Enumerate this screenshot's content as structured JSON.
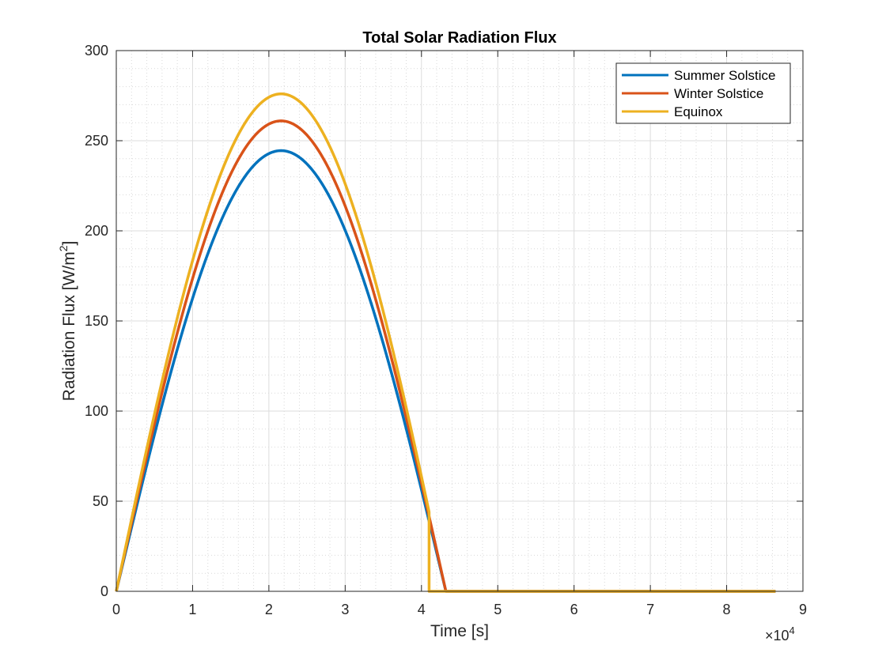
{
  "chart_data": {
    "type": "line",
    "title": "Total Solar Radiation Flux",
    "xlabel": "Time [s]",
    "ylabel": "Radiation Flux [W/m",
    "ylabel_sup": "2",
    "ylabel_end": "]",
    "x_multiplier_base": "×10",
    "x_multiplier_exp": "4",
    "xlim": [
      0,
      9
    ],
    "ylim": [
      0,
      300
    ],
    "xticks": [
      0,
      1,
      2,
      3,
      4,
      5,
      6,
      7,
      8,
      9
    ],
    "xtick_labels": [
      "0",
      "1",
      "2",
      "3",
      "4",
      "5",
      "6",
      "7",
      "8",
      "9"
    ],
    "yticks": [
      0,
      50,
      100,
      150,
      200,
      250,
      300
    ],
    "ytick_labels": [
      "0",
      "50",
      "100",
      "150",
      "200",
      "250",
      "300"
    ],
    "grid": true,
    "minor_grid": true,
    "legend_position": "top-right",
    "series": [
      {
        "name": "Summer Solstice",
        "color": "#0072BD",
        "x_end": 8.64,
        "zero_at": 4.32,
        "peak": 244.5,
        "drop_from": null
      },
      {
        "name": "Winter Solstice",
        "color": "#D95319",
        "x_end": 8.64,
        "zero_at": 4.32,
        "peak": 261,
        "drop_from": null
      },
      {
        "name": "Equinox",
        "color": "#EDB120",
        "x_end": 8.64,
        "zero_at": 4.32,
        "peak": 276,
        "drop_from": 4.1
      }
    ]
  }
}
